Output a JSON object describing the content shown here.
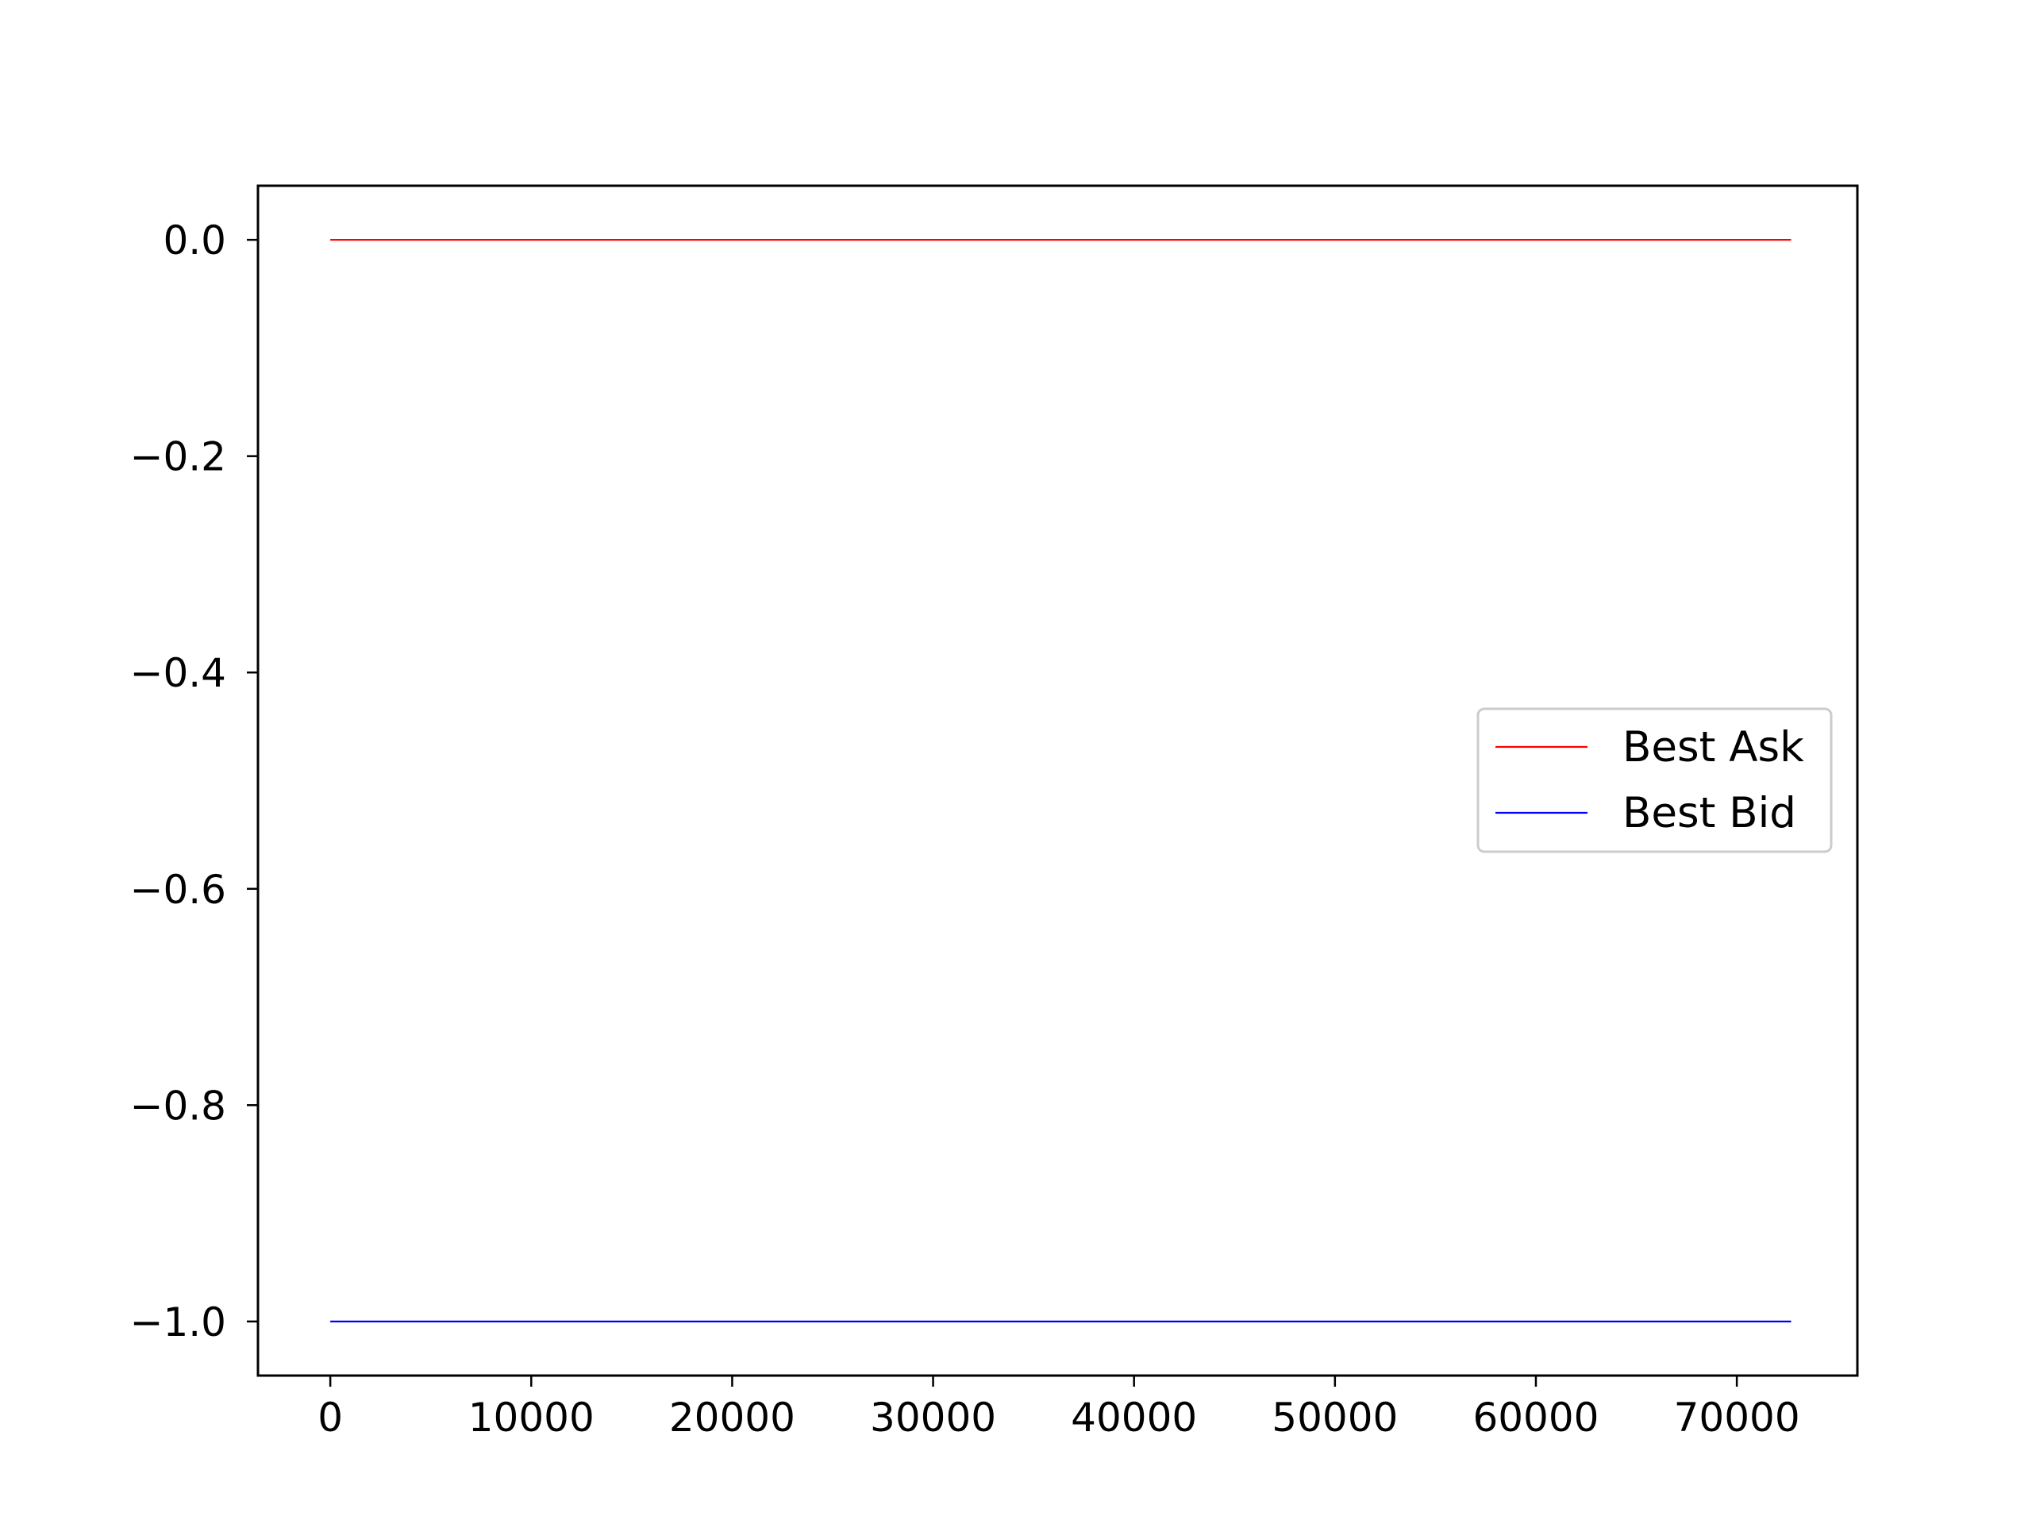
{
  "chart_data": {
    "type": "line",
    "title": "",
    "xlabel": "",
    "ylabel": "",
    "xlim": [
      -3600,
      76000
    ],
    "ylim": [
      -1.05,
      0.05
    ],
    "x_ticks": [
      0,
      10000,
      20000,
      30000,
      40000,
      50000,
      60000,
      70000
    ],
    "x_tick_labels": [
      "0",
      "10000",
      "20000",
      "30000",
      "40000",
      "50000",
      "60000",
      "70000"
    ],
    "y_ticks": [
      0.0,
      -0.2,
      -0.4,
      -0.6,
      -0.8,
      -1.0
    ],
    "y_tick_labels": [
      "0.0",
      "−0.2",
      "−0.4",
      "−0.6",
      "−0.8",
      "−1.0"
    ],
    "grid": false,
    "legend_position": "center-right",
    "series": [
      {
        "name": "Best Ask",
        "color": "#ff0000",
        "x": [
          0,
          72700
        ],
        "y": [
          0.0,
          0.0
        ]
      },
      {
        "name": "Best Bid",
        "color": "#0000ff",
        "x": [
          0,
          72700
        ],
        "y": [
          -1.0,
          -1.0
        ]
      }
    ]
  }
}
